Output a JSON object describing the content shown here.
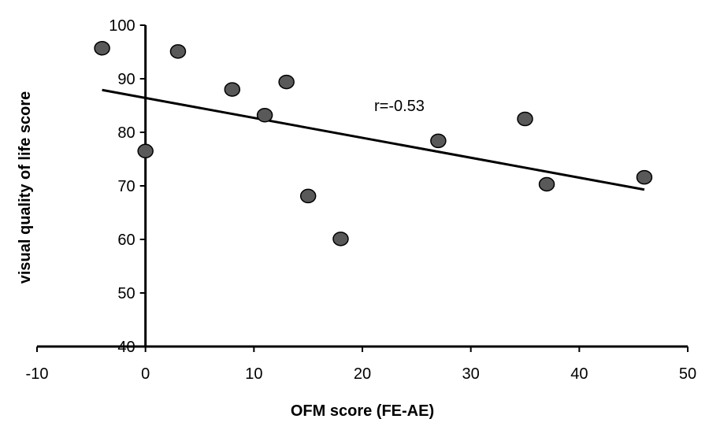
{
  "chart_data": {
    "type": "scatter",
    "title": "",
    "xlabel": "OFM score (FE-AE)",
    "ylabel": "visual quality of  life score",
    "xlim": [
      -10,
      50
    ],
    "ylim": [
      40,
      100
    ],
    "xticks": [
      -10,
      0,
      10,
      20,
      30,
      40,
      50
    ],
    "yticks": [
      40,
      50,
      60,
      70,
      80,
      90,
      100
    ],
    "grid": false,
    "points": [
      {
        "x": -4,
        "y": 95.7
      },
      {
        "x": 0,
        "y": 76.5
      },
      {
        "x": 3,
        "y": 95.1
      },
      {
        "x": 8,
        "y": 88.0
      },
      {
        "x": 11,
        "y": 83.2
      },
      {
        "x": 13,
        "y": 89.4
      },
      {
        "x": 15,
        "y": 68.1
      },
      {
        "x": 18,
        "y": 60.1
      },
      {
        "x": 27,
        "y": 78.4
      },
      {
        "x": 35,
        "y": 82.5
      },
      {
        "x": 37,
        "y": 70.3
      },
      {
        "x": 46,
        "y": 71.6
      }
    ],
    "trendline": {
      "x": [
        -4,
        46
      ],
      "y": [
        87.9,
        69.3
      ]
    },
    "annotation": "r=-0.53",
    "marker_color": "#595959"
  }
}
